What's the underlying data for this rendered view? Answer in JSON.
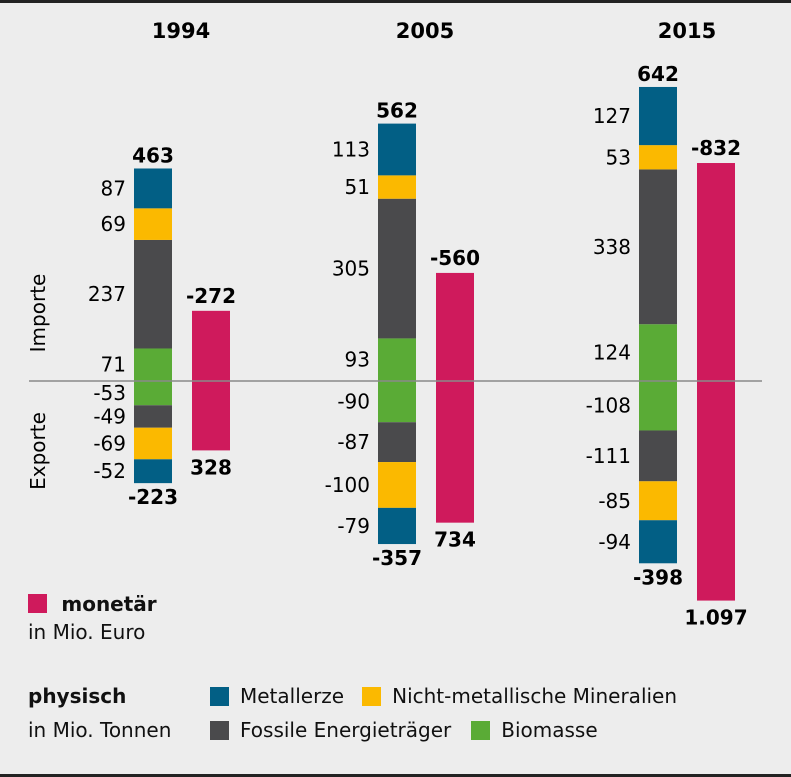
{
  "chart_data": {
    "type": "bar",
    "subtype": "stacked diverging bar with paired monetary bar",
    "categories": [
      "1994",
      "2005",
      "2015"
    ],
    "side_labels": {
      "top": "Importe",
      "bottom": "Exporte"
    },
    "physical": {
      "title": "physisch",
      "unit": "in Mio. Tonnen",
      "series": [
        {
          "name": "Metallerze",
          "color": "#025f85",
          "imports": [
            87,
            113,
            127
          ],
          "exports": [
            -52,
            -79,
            -94
          ]
        },
        {
          "name": "Nicht-metallische Mineralien",
          "color": "#fbb900",
          "imports": [
            69,
            51,
            53
          ],
          "exports": [
            -69,
            -100,
            -85
          ]
        },
        {
          "name": "Fossile Energieträger",
          "color": "#4a4a4c",
          "imports": [
            237,
            305,
            338
          ],
          "exports": [
            -49,
            -87,
            -111
          ]
        },
        {
          "name": "Biomasse",
          "color": "#5aab36",
          "imports": [
            71,
            93,
            124
          ],
          "exports": [
            -53,
            -90,
            -108
          ]
        }
      ],
      "import_totals": [
        "463",
        "562",
        "642"
      ],
      "export_totals": [
        "-223",
        "-357",
        "-398"
      ]
    },
    "monetary": {
      "title": "monetär",
      "unit": "in Mio. Euro",
      "color": "#cf1a5c",
      "top_values": [
        -272,
        -560,
        -832
      ],
      "bottom_values": [
        328,
        734,
        1097
      ],
      "top_labels": [
        "-272",
        "-560",
        "-832"
      ],
      "bottom_labels": [
        "328",
        "734",
        "1.097"
      ]
    },
    "grid": false,
    "legend_position": "bottom"
  },
  "legend": {
    "monetary": {
      "title": "monetär",
      "unit": "in Mio. Euro"
    },
    "physical": {
      "title": "physisch",
      "unit": "in Mio. Tonnen",
      "items": [
        {
          "label": "Metallerze",
          "color": "#025f85"
        },
        {
          "label": "Nicht-metallische Mineralien",
          "color": "#fbb900"
        },
        {
          "label": "Fossile Energieträger",
          "color": "#4a4a4c"
        },
        {
          "label": "Biomasse",
          "color": "#5aab36"
        }
      ]
    }
  }
}
